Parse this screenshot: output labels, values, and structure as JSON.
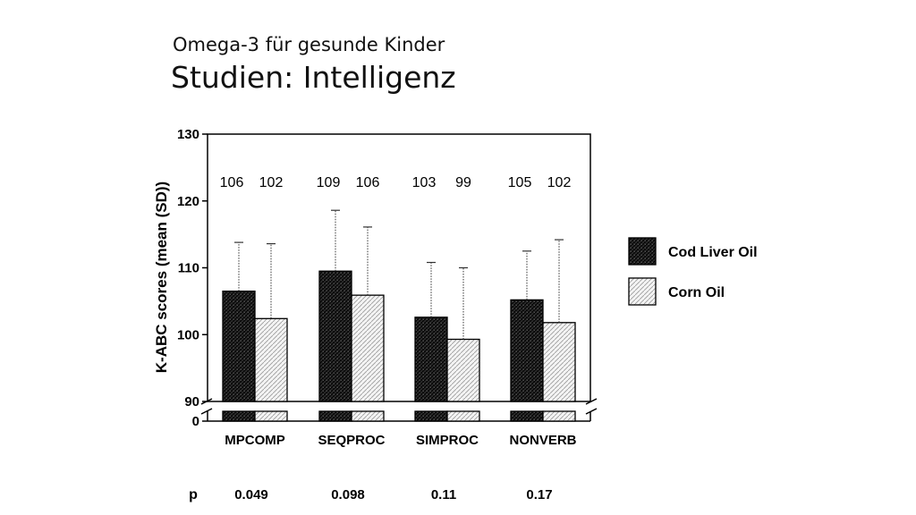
{
  "slide": {
    "subtitle": "Omega-3 für gesunde Kinder",
    "title": "Studien: Intelligenz"
  },
  "chart_data": {
    "type": "bar",
    "title": "",
    "xlabel": "",
    "ylabel": "K-ABC scores (mean (SD))",
    "ylim": [
      90,
      130
    ],
    "yticks": [
      "130",
      "120",
      "110",
      "100",
      "90"
    ],
    "zero_label": "0",
    "axis_break": true,
    "grid": false,
    "legend_position": "right",
    "categories": [
      "MPCOMP",
      "SEQPROC",
      "SIMPROC",
      "NONVERB"
    ],
    "series": [
      {
        "name": "Cod Liver Oil",
        "values": [
          106.5,
          109.5,
          102.6,
          105.2
        ],
        "sd": [
          7.3,
          9.1,
          8.2,
          7.3
        ],
        "labels": [
          "106",
          "109",
          "103",
          "105"
        ],
        "color": "#1a1a1a",
        "pattern": "dark"
      },
      {
        "name": "Corn Oil",
        "values": [
          102.4,
          105.9,
          99.3,
          101.8
        ],
        "sd": [
          11.2,
          10.2,
          10.7,
          12.4
        ],
        "labels": [
          "102",
          "106",
          "99",
          "102"
        ],
        "color": "#f2f2f2",
        "pattern": "hatched"
      }
    ],
    "p_label": "p",
    "p_values": [
      "0.049",
      "0.098",
      "0.11",
      "0.17"
    ]
  }
}
